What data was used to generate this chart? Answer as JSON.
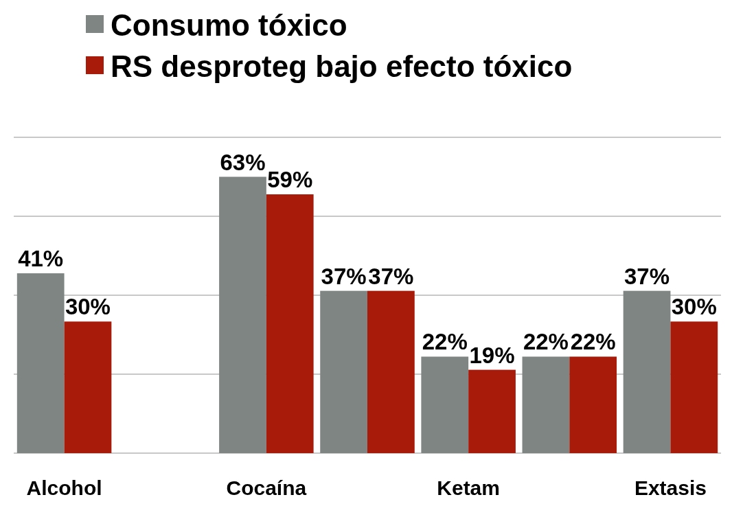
{
  "chart_data": {
    "type": "bar",
    "categories": [
      "Alcohol",
      null,
      "Cocaína",
      null,
      "Ketam",
      null,
      "Extasis"
    ],
    "series": [
      {
        "name": "Consumo tóxico",
        "color": "#7f8583",
        "values": [
          41,
          null,
          63,
          37,
          22,
          22,
          37
        ],
        "value_labels": [
          "41%",
          null,
          "63%",
          "37%",
          "22%",
          "22%",
          "37%"
        ]
      },
      {
        "name": "RS desproteg bajo efecto tóxico",
        "color": "#a81a0a",
        "values": [
          30,
          null,
          59,
          37,
          19,
          22,
          30
        ],
        "value_labels": [
          "30%",
          null,
          "59%",
          "37%",
          "19%",
          "22%",
          "30%"
        ]
      }
    ],
    "ylim": [
      0,
      72
    ],
    "yticks": [
      {
        "value": 0,
        "label": null
      },
      {
        "value": 18,
        "label": null
      },
      {
        "value": 36,
        "label": null
      },
      {
        "value": 54,
        "label": null
      },
      {
        "value": 72,
        "label": null
      }
    ],
    "tick_labels": "x",
    "grid": "y",
    "legend": "top left"
  }
}
